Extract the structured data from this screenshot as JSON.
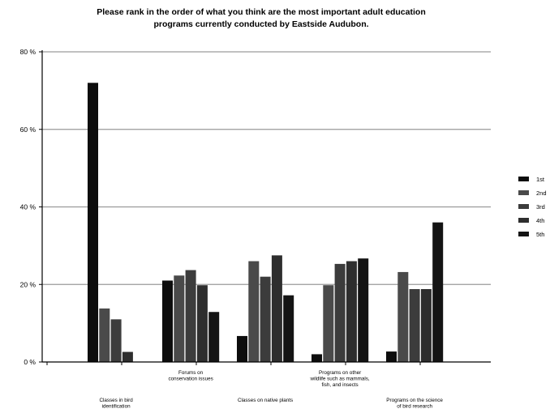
{
  "chart_data": {
    "type": "bar",
    "title": [
      "Please rank in the order of what you think are the most important adult education",
      "programs currently conducted by Eastside Audubon."
    ],
    "categories": [
      [
        "Classes in bird",
        "identification"
      ],
      [
        "Forums on",
        "conservation issues"
      ],
      [
        "Classes on native plants"
      ],
      [
        "Programs on other",
        "wildlife such as mammals,",
        "fish, and insects"
      ],
      [
        "Programs on the science",
        "of bird research"
      ]
    ],
    "series": [
      {
        "name": "1st",
        "color": "#0d0d0d",
        "values": [
          72,
          21,
          6.7,
          2,
          2.7
        ]
      },
      {
        "name": "2nd",
        "color": "#4a4a4a",
        "values": [
          13.8,
          22.3,
          26,
          19.8,
          23.2
        ]
      },
      {
        "name": "3rd",
        "color": "#3c3c3c",
        "values": [
          11,
          23.7,
          22,
          25.3,
          18.8
        ]
      },
      {
        "name": "4th",
        "color": "#2e2e2e",
        "values": [
          2.6,
          19.8,
          27.5,
          26,
          18.8
        ]
      },
      {
        "name": "5th",
        "color": "#141414",
        "values": [
          0,
          12.9,
          17.2,
          26.7,
          36
        ]
      }
    ],
    "ylim": [
      0,
      80
    ],
    "yticks": [
      0,
      20,
      40,
      60,
      80
    ],
    "ytick_labels": [
      "0 %",
      "20 %",
      "40 %",
      "60 %",
      "80 %"
    ],
    "grid": true,
    "legend_position": "right"
  }
}
